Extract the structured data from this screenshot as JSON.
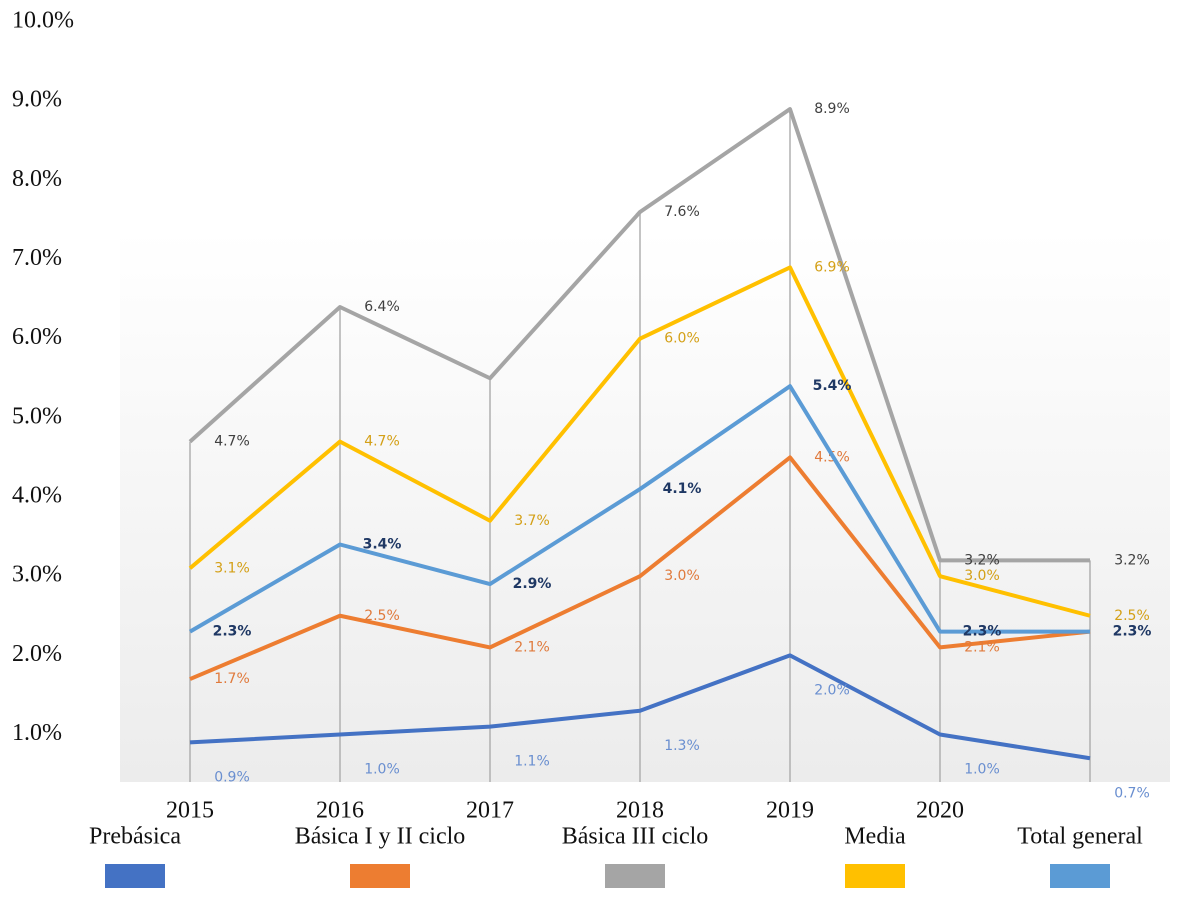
{
  "chart_data": {
    "type": "line",
    "categories": [
      "2015",
      "2016",
      "2017",
      "2018",
      "2019",
      "2020",
      null
    ],
    "ylim": [
      0.4,
      10.0
    ],
    "yticks": [
      {
        "value": 1,
        "label": "1.0%"
      },
      {
        "value": 2,
        "label": "2.0%"
      },
      {
        "value": 3,
        "label": "3.0%"
      },
      {
        "value": 4,
        "label": "4.0%"
      },
      {
        "value": 5,
        "label": "5.0%"
      },
      {
        "value": 6,
        "label": "6.0%"
      },
      {
        "value": 7,
        "label": "7.0%"
      },
      {
        "value": 8,
        "label": "8.0%"
      },
      {
        "value": 9,
        "label": "9.0%"
      },
      {
        "value": 10,
        "label": "10.0%"
      }
    ],
    "legend": "bottom",
    "series": [
      {
        "name": "Prebásica",
        "color": "#4472c4",
        "label_color": "#6a8fd0",
        "values": [
          0.9,
          1.0,
          1.1,
          1.3,
          2.0,
          1.0,
          0.7
        ],
        "value_labels": [
          "0.9%",
          "1.0%",
          "1.1%",
          "1.3%",
          "2.0%",
          "1.0%",
          "0.7%"
        ]
      },
      {
        "name": "Básica I y II ciclo",
        "color": "#ed7d31",
        "label_color": "#e07a3c",
        "values": [
          1.7,
          2.5,
          2.1,
          3.0,
          4.5,
          2.1,
          2.3
        ],
        "value_labels": [
          "1.7%",
          "2.5%",
          "2.1%",
          "3.0%",
          "4.5%",
          "2.1%",
          null
        ]
      },
      {
        "name": "Básica III ciclo",
        "color": "#a5a5a5",
        "label_color": "#404040",
        "values": [
          4.7,
          6.4,
          5.5,
          7.6,
          8.9,
          3.2,
          3.2
        ],
        "value_labels": [
          "4.7%",
          "6.4%",
          null,
          "7.6%",
          "8.9%",
          "3.2%",
          "3.2%"
        ]
      },
      {
        "name": "Media",
        "color": "#ffc000",
        "label_color": "#d4a017",
        "values": [
          3.1,
          4.7,
          3.7,
          6.0,
          6.9,
          3.0,
          2.5
        ],
        "value_labels": [
          "3.1%",
          "4.7%",
          "3.7%",
          "6.0%",
          "6.9%",
          "3.0%",
          "2.5%"
        ]
      },
      {
        "name": "Total general",
        "color": "#5b9bd5",
        "label_color": "#1f3864",
        "values": [
          2.3,
          3.4,
          2.9,
          4.1,
          5.4,
          2.3,
          2.3
        ],
        "value_labels": [
          "2.3%",
          "3.4%",
          "2.9%",
          "4.1%",
          "5.4%",
          "2.3%",
          "2.3%"
        ]
      }
    ]
  }
}
